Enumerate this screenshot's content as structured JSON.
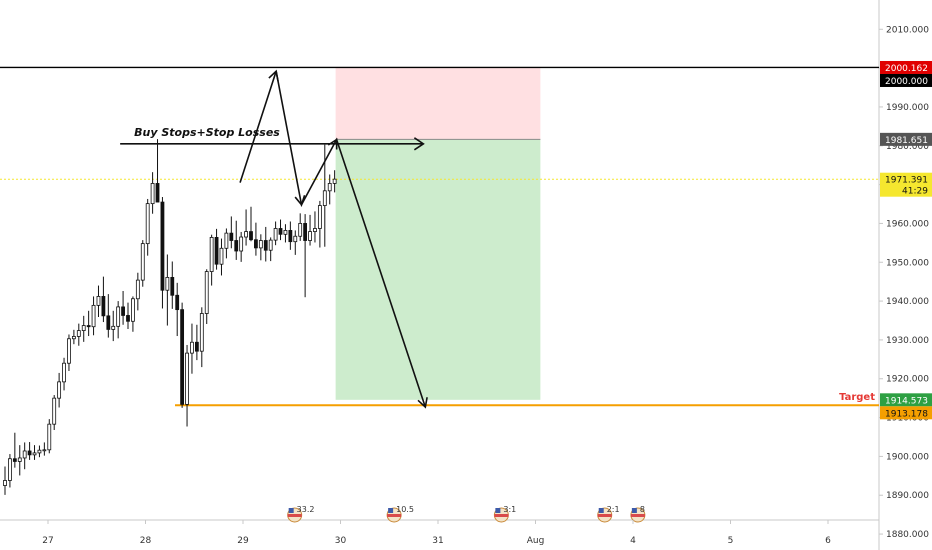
{
  "chart_data": {
    "type": "candlestick",
    "colors": {
      "candle_up": "#ffffff",
      "candle_down": "#111111",
      "wick": "#111111",
      "stop_zone": "#ffe0e2",
      "target_zone": "#cdeccd",
      "target_line": "#f59f00",
      "current_price": "#f5e72f"
    },
    "x_axis": {
      "ticks": [
        {
          "label": "27",
          "d": 0
        },
        {
          "label": "28",
          "d": 1
        },
        {
          "label": "29",
          "d": 2
        },
        {
          "label": "30",
          "d": 3
        },
        {
          "label": "31",
          "d": 4
        },
        {
          "label": "Aug",
          "d": 5
        },
        {
          "label": "4",
          "d": 6
        },
        {
          "label": "5",
          "d": 7
        },
        {
          "label": "6",
          "d": 8
        }
      ]
    },
    "y_axis": {
      "range": [
        1876,
        2012
      ],
      "ticks": [
        "1880.000",
        "1890.000",
        "1900.000",
        "1910.000",
        "1920.000",
        "1930.000",
        "1940.000",
        "1950.000",
        "1960.000",
        "1970.000",
        "1980.000",
        "1990.000",
        "2000.000",
        "2010.000"
      ]
    },
    "price_tags": [
      {
        "value": 2000.162,
        "label": "2000.162",
        "color": "#e00000",
        "text_color": "#ffffff"
      },
      {
        "value": 2000.0,
        "label": "2000.000",
        "color": "#000000",
        "text_color": "#ffffff"
      },
      {
        "value": 1981.651,
        "label": "1981.651",
        "color": "#555555",
        "text_color": "#ffffff"
      },
      {
        "value": 1971.391,
        "label": "1971.391",
        "sublabel": "41:29",
        "color": "#f5e72f",
        "text_color": "#111111"
      },
      {
        "value": 1914.573,
        "label": "1914.573",
        "color": "#2ea043",
        "text_color": "#ffffff"
      },
      {
        "value": 1913.178,
        "label": "1913.178",
        "color": "#f59f00",
        "text_color": "#111111"
      }
    ],
    "resistance_level": 2000.162,
    "current_price": 1971.391,
    "target_level": 1913.178,
    "target_label": "Target",
    "position": {
      "d_start": 2.95,
      "d_end": 5.05,
      "entry": 1981.651,
      "stop": 2000.162,
      "target": 1914.573
    },
    "annotation": {
      "text": "Buy Stops+Stop Losses",
      "level": 1980.5,
      "d_start": 0.74,
      "d_end": 3.85
    },
    "projection_path": [
      {
        "d": 1.97,
        "p": 1970.5
      },
      {
        "d": 2.34,
        "p": 1999.2
      },
      {
        "d": 2.6,
        "p": 1964.8
      },
      {
        "d": 2.96,
        "p": 1981.6
      },
      {
        "d": 3.87,
        "p": 1912.7
      }
    ],
    "events": [
      {
        "d": 2.53,
        "label": "33.2"
      },
      {
        "d": 3.55,
        "label": "10.5"
      },
      {
        "d": 4.65,
        "label": "3:1"
      },
      {
        "d": 5.71,
        "label": "2:1"
      },
      {
        "d": 6.05,
        "label": "8"
      }
    ],
    "candles_ohlc": [
      [
        1892.5,
        1897.4,
        1890.1,
        1893.8
      ],
      [
        1893.8,
        1900.6,
        1892.0,
        1899.4
      ],
      [
        1899.4,
        1906.1,
        1897.1,
        1898.7
      ],
      [
        1898.7,
        1902.9,
        1895.1,
        1899.6
      ],
      [
        1899.6,
        1903.6,
        1896.7,
        1901.4
      ],
      [
        1901.4,
        1903.7,
        1899.1,
        1900.4
      ],
      [
        1900.4,
        1902.9,
        1899.1,
        1900.9
      ],
      [
        1900.9,
        1902.8,
        1899.8,
        1901.6
      ],
      [
        1901.6,
        1903.6,
        1900.2,
        1901.7
      ],
      [
        1901.7,
        1909.6,
        1900.8,
        1908.3
      ],
      [
        1908.3,
        1915.8,
        1906.8,
        1915.0
      ],
      [
        1915.0,
        1921.5,
        1912.6,
        1919.2
      ],
      [
        1919.2,
        1925.4,
        1917.0,
        1924.0
      ],
      [
        1924.0,
        1931.4,
        1922.0,
        1930.3
      ],
      [
        1930.3,
        1932.6,
        1928.9,
        1930.9
      ],
      [
        1930.9,
        1934.2,
        1928.5,
        1932.4
      ],
      [
        1932.4,
        1936.2,
        1929.5,
        1933.7
      ],
      [
        1933.7,
        1937.5,
        1931.0,
        1933.4
      ],
      [
        1933.4,
        1941.2,
        1931.2,
        1938.9
      ],
      [
        1938.9,
        1944.0,
        1935.9,
        1941.2
      ],
      [
        1941.2,
        1946.3,
        1934.6,
        1936.2
      ],
      [
        1936.2,
        1941.8,
        1930.6,
        1932.7
      ],
      [
        1932.7,
        1937.5,
        1929.7,
        1933.5
      ],
      [
        1933.5,
        1940.0,
        1930.4,
        1938.5
      ],
      [
        1938.5,
        1942.6,
        1933.9,
        1936.3
      ],
      [
        1936.3,
        1939.6,
        1932.8,
        1934.8
      ],
      [
        1934.8,
        1941.2,
        1932.1,
        1940.6
      ],
      [
        1940.6,
        1947.3,
        1937.6,
        1945.4
      ],
      [
        1945.4,
        1955.7,
        1943.7,
        1954.8
      ],
      [
        1954.8,
        1966.3,
        1951.7,
        1965.1
      ],
      [
        1965.1,
        1973.2,
        1962.5,
        1970.3
      ],
      [
        1970.3,
        1981.7,
        1966.8,
        1965.5
      ],
      [
        1965.5,
        1966.8,
        1938.1,
        1942.8
      ],
      [
        1942.8,
        1952.0,
        1933.7,
        1946.1
      ],
      [
        1946.1,
        1950.2,
        1938.0,
        1941.5
      ],
      [
        1941.5,
        1944.7,
        1931.0,
        1937.8
      ],
      [
        1937.8,
        1939.6,
        1912.5,
        1913.4
      ],
      [
        1913.4,
        1928.7,
        1907.7,
        1926.6
      ],
      [
        1926.6,
        1934.2,
        1921.3,
        1929.4
      ],
      [
        1929.4,
        1933.9,
        1924.8,
        1927.1
      ],
      [
        1927.1,
        1938.4,
        1923.0,
        1936.8
      ],
      [
        1936.8,
        1948.2,
        1934.1,
        1947.6
      ],
      [
        1947.6,
        1957.1,
        1944.0,
        1956.4
      ],
      [
        1956.4,
        1958.6,
        1948.1,
        1949.5
      ],
      [
        1949.5,
        1956.1,
        1946.6,
        1953.6
      ],
      [
        1953.6,
        1958.7,
        1951.0,
        1957.5
      ],
      [
        1957.5,
        1961.8,
        1953.6,
        1955.6
      ],
      [
        1955.6,
        1960.7,
        1950.6,
        1952.9
      ],
      [
        1952.9,
        1957.8,
        1950.1,
        1956.5
      ],
      [
        1956.5,
        1963.6,
        1954.3,
        1957.9
      ],
      [
        1957.9,
        1964.3,
        1955.4,
        1955.8
      ],
      [
        1955.8,
        1960.2,
        1951.7,
        1953.7
      ],
      [
        1953.7,
        1957.2,
        1950.5,
        1955.6
      ],
      [
        1955.6,
        1959.1,
        1950.2,
        1953.1
      ],
      [
        1953.1,
        1956.4,
        1950.3,
        1955.7
      ],
      [
        1955.7,
        1960.5,
        1954.4,
        1958.7
      ],
      [
        1958.7,
        1961.0,
        1955.7,
        1957.2
      ],
      [
        1957.2,
        1959.8,
        1955.1,
        1958.2
      ],
      [
        1958.2,
        1960.5,
        1953.2,
        1955.3
      ],
      [
        1955.3,
        1958.2,
        1951.9,
        1956.7
      ],
      [
        1956.7,
        1962.6,
        1955.5,
        1960.0
      ],
      [
        1960.0,
        1962.4,
        1941.0,
        1955.6
      ],
      [
        1955.6,
        1962.2,
        1954.3,
        1957.9
      ],
      [
        1957.9,
        1963.1,
        1955.1,
        1958.7
      ],
      [
        1958.7,
        1965.8,
        1953.8,
        1964.6
      ],
      [
        1964.6,
        1980.3,
        1954.0,
        1968.4
      ],
      [
        1968.4,
        1972.6,
        1964.9,
        1970.3
      ],
      [
        1970.3,
        1973.7,
        1968.0,
        1971.4
      ]
    ]
  }
}
